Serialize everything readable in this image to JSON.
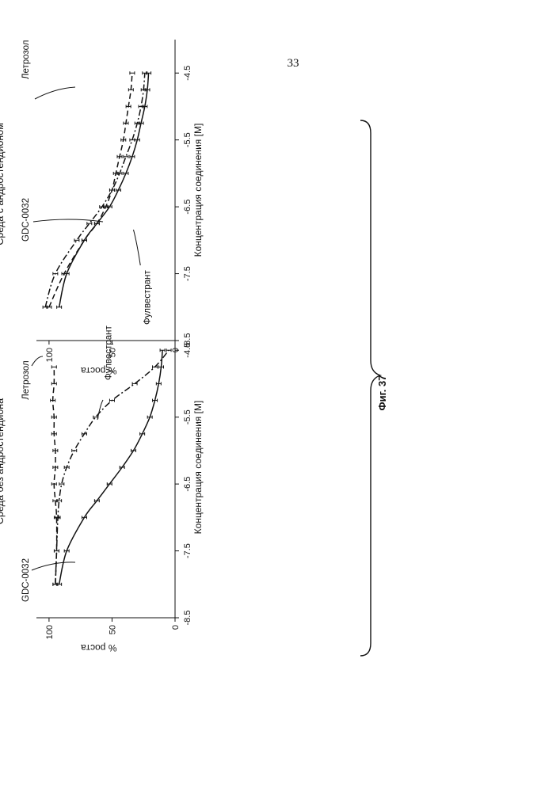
{
  "page": {
    "number": "33"
  },
  "figure": {
    "caption": "Фиг. 37"
  },
  "chart_data": [
    {
      "type": "line",
      "title": "Среда без андростендиона",
      "xlabel": "Концентрация соединения [M]",
      "ylabel": "% роста",
      "x_ticks": [
        "-8.5",
        "-7.5",
        "-6.5",
        "-5.5",
        "-4.5"
      ],
      "y_ticks": [
        "0",
        "50",
        "100"
      ],
      "xlim": [
        -8.5,
        -4.0
      ],
      "ylim": [
        0,
        110
      ],
      "series": [
        {
          "name": "Летрозол",
          "style": "dashed",
          "x": [
            -8.0,
            -7.5,
            -7.0,
            -6.75,
            -6.5,
            -6.25,
            -6.0,
            -5.75,
            -5.5,
            -5.25,
            -5.0,
            -4.75
          ],
          "y": [
            95,
            94,
            94,
            95,
            96,
            95,
            95,
            96,
            96,
            97,
            96,
            96
          ]
        },
        {
          "name": "Фулвестрант",
          "style": "dash-dot",
          "x": [
            -8.0,
            -7.5,
            -7.0,
            -6.75,
            -6.5,
            -6.25,
            -6.0,
            -5.75,
            -5.5,
            -5.25,
            -5.0,
            -4.75,
            -4.5
          ],
          "y": [
            95,
            94,
            93,
            92,
            90,
            86,
            80,
            72,
            63,
            50,
            32,
            16,
            5
          ]
        },
        {
          "name": "GDC-0032",
          "style": "solid",
          "x": [
            -8.0,
            -7.5,
            -7.0,
            -6.75,
            -6.5,
            -6.25,
            -6.0,
            -5.75,
            -5.5,
            -5.25,
            -5.0,
            -4.75,
            -4.5
          ],
          "y": [
            92,
            86,
            72,
            62,
            52,
            42,
            33,
            26,
            20,
            16,
            13,
            11,
            10
          ]
        }
      ],
      "annotations": [
        "Летрозол",
        "Фулвестрант",
        "GDC-0032"
      ]
    },
    {
      "type": "line",
      "title": "Среда с андростендионом",
      "xlabel": "Концентрация соединения [M]",
      "ylabel": "% роста",
      "x_ticks": [
        "-8.5",
        "-7.5",
        "-6.5",
        "-5.5",
        "-4.5"
      ],
      "y_ticks": [
        "0",
        "50",
        "100"
      ],
      "xlim": [
        -8.5,
        -4.0
      ],
      "ylim": [
        0,
        110
      ],
      "series": [
        {
          "name": "Летрозол",
          "style": "dashed",
          "x": [
            -8.0,
            -7.5,
            -7.0,
            -6.75,
            -6.5,
            -6.25,
            -6.0,
            -5.75,
            -5.5,
            -5.25,
            -5.0,
            -4.75,
            -4.5
          ],
          "y": [
            100,
            88,
            72,
            62,
            55,
            50,
            47,
            44,
            41,
            39,
            37,
            35,
            34
          ]
        },
        {
          "name": "Фулвестрант",
          "style": "dash-dot",
          "x": [
            -8.0,
            -7.5,
            -7.0,
            -6.75,
            -6.5,
            -6.25,
            -6.0,
            -5.75,
            -5.5,
            -5.25,
            -5.0,
            -4.75,
            -4.5
          ],
          "y": [
            103,
            95,
            78,
            68,
            58,
            50,
            44,
            39,
            34,
            30,
            27,
            25,
            24
          ]
        },
        {
          "name": "GDC-0032",
          "style": "solid",
          "x": [
            -8.0,
            -7.5,
            -7.0,
            -6.75,
            -6.5,
            -6.25,
            -6.0,
            -5.75,
            -5.5,
            -5.25,
            -5.0,
            -4.75,
            -4.5
          ],
          "y": [
            92,
            86,
            72,
            62,
            52,
            45,
            39,
            34,
            30,
            27,
            24,
            22,
            21
          ]
        }
      ],
      "annotations": [
        "Летрозол",
        "Фулвестрант",
        "GDC-0032"
      ]
    }
  ]
}
